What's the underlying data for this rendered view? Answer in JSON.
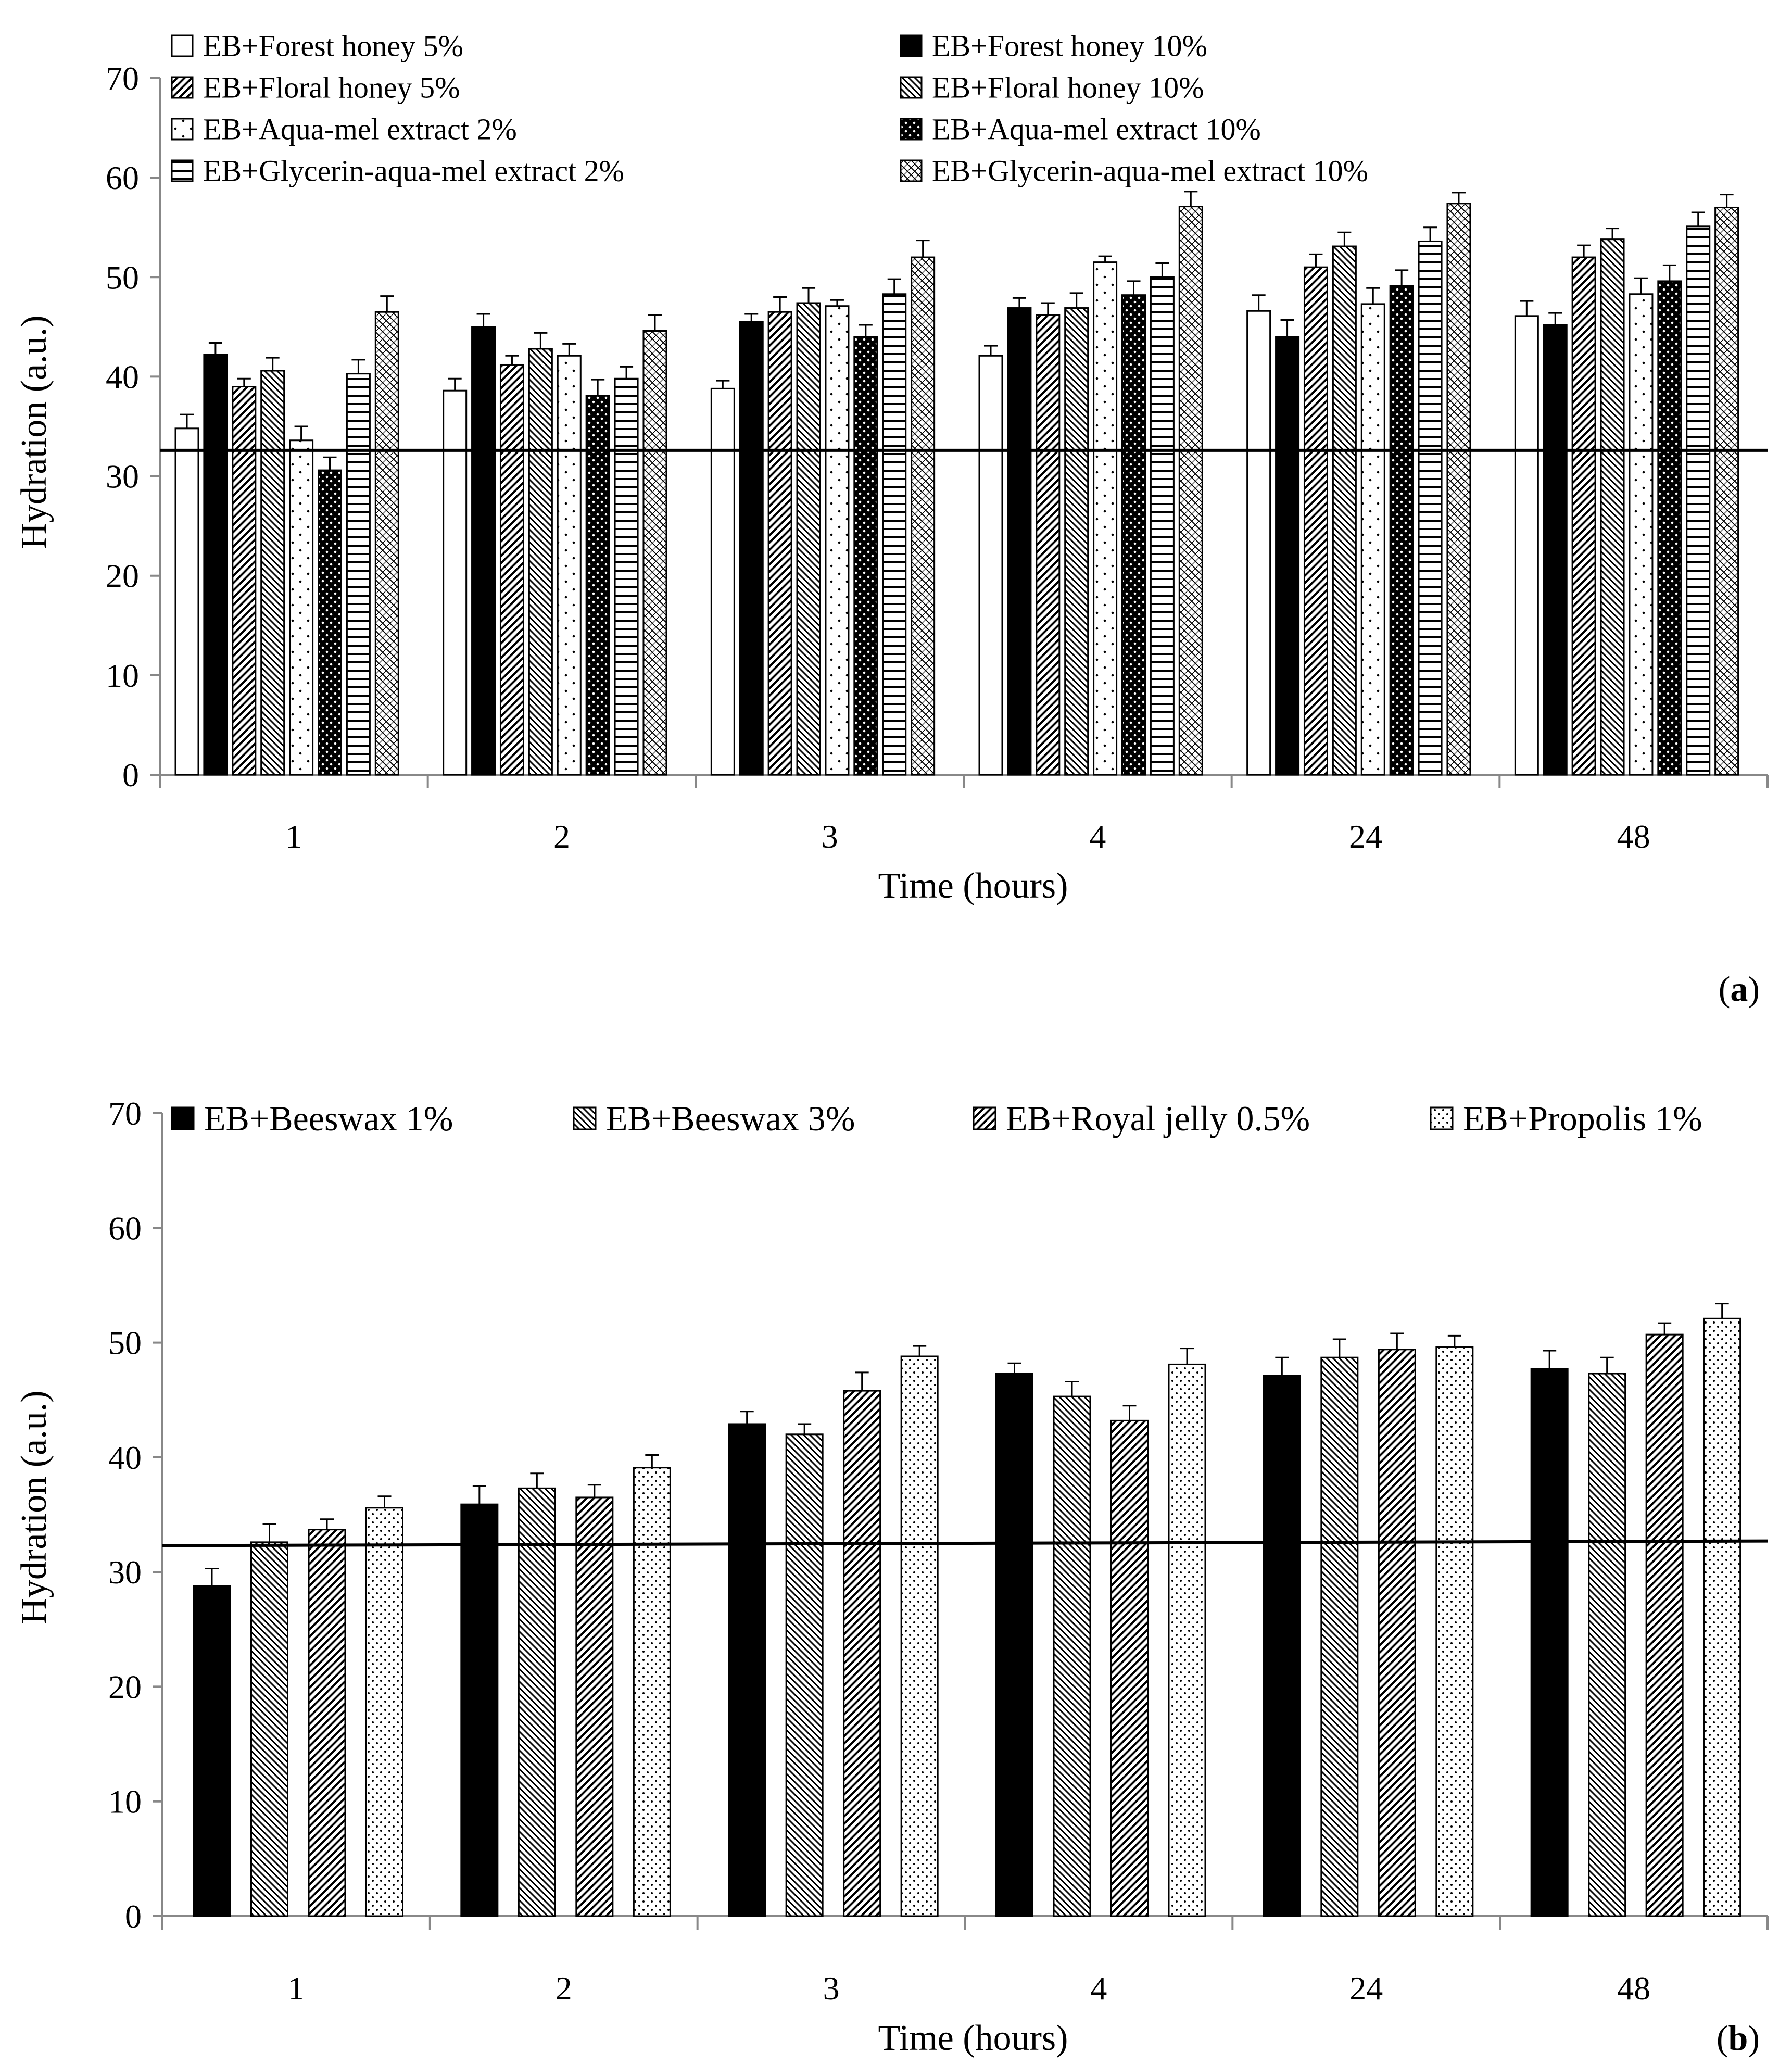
{
  "panel_labels": {
    "a": "(a)",
    "b": "(b)",
    "a_letter": "a",
    "b_letter": "b"
  },
  "pattern_names": {
    "white": "white-fill",
    "black": "black-fill",
    "diag_dense": "diagonal-hatch-dense",
    "diag_fine": "diagonal-hatch-fine",
    "dots_sparse": "sparse-dots",
    "dots_white_on_black": "white-dots-on-black",
    "horizontal": "horizontal-stripes",
    "checker": "checker-diagonal",
    "dots": "dotted"
  },
  "chart_data": [
    {
      "type": "bar",
      "panel": "(a)",
      "xlabel": "Time (hours)",
      "ylabel": "Hydration (a.u.)",
      "ylim": [
        0,
        70
      ],
      "yticks": [
        0,
        10,
        20,
        30,
        40,
        50,
        60,
        70
      ],
      "categories": [
        "1",
        "2",
        "3",
        "4",
        "24",
        "48"
      ],
      "reference_line": {
        "y_start": 32.6,
        "y_end": 32.6
      },
      "legend_position": "top",
      "series": [
        {
          "name": "EB+Forest honey 5%",
          "pattern": "white",
          "values": [
            34.8,
            38.6,
            38.8,
            42.1,
            46.6,
            46.1
          ],
          "errors": [
            1.4,
            1.2,
            0.8,
            1.0,
            1.6,
            1.5
          ]
        },
        {
          "name": "EB+Forest honey 10%",
          "pattern": "black",
          "values": [
            42.2,
            45.0,
            45.5,
            46.9,
            44.0,
            45.2
          ],
          "errors": [
            1.2,
            1.3,
            0.8,
            1.0,
            1.7,
            1.2
          ]
        },
        {
          "name": "EB+Floral honey 5%",
          "pattern": "diag_dense",
          "values": [
            39.0,
            41.2,
            46.5,
            46.2,
            51.0,
            52.0
          ],
          "errors": [
            0.8,
            0.9,
            1.5,
            1.2,
            1.3,
            1.2
          ]
        },
        {
          "name": "EB+Floral honey 10%",
          "pattern": "diag_fine",
          "values": [
            40.6,
            42.8,
            47.4,
            46.9,
            53.1,
            53.8
          ],
          "errors": [
            1.3,
            1.6,
            1.5,
            1.5,
            1.4,
            1.1
          ]
        },
        {
          "name": "EB+Aqua-mel extract 2%",
          "pattern": "dots_sparse",
          "values": [
            33.6,
            42.1,
            47.1,
            51.5,
            47.3,
            48.3
          ],
          "errors": [
            1.4,
            1.2,
            0.6,
            0.6,
            1.6,
            1.6
          ]
        },
        {
          "name": "EB+Aqua-mel extract 10%",
          "pattern": "dots_white_on_black",
          "values": [
            30.6,
            38.1,
            44.0,
            48.2,
            49.1,
            49.6
          ],
          "errors": [
            1.3,
            1.6,
            1.2,
            1.4,
            1.6,
            1.6
          ]
        },
        {
          "name": "EB+Glycerin-aqua-mel extract 2%",
          "pattern": "horizontal",
          "values": [
            40.3,
            39.8,
            48.3,
            50.0,
            53.6,
            55.1
          ],
          "errors": [
            1.4,
            1.2,
            1.5,
            1.4,
            1.4,
            1.4
          ]
        },
        {
          "name": "EB+Glycerin-aqua-mel extract 10%",
          "pattern": "checker",
          "values": [
            46.5,
            44.6,
            52.0,
            57.1,
            57.4,
            57.0
          ],
          "errors": [
            1.6,
            1.6,
            1.7,
            1.5,
            1.1,
            1.3
          ]
        }
      ]
    },
    {
      "type": "bar",
      "panel": "(b)",
      "xlabel": "Time (hours)",
      "ylabel": "Hydration (a.u.)",
      "ylim": [
        0,
        70
      ],
      "yticks": [
        0,
        10,
        20,
        30,
        40,
        50,
        60,
        70
      ],
      "categories": [
        "1",
        "2",
        "3",
        "4",
        "24",
        "48"
      ],
      "reference_line": {
        "y_start": 32.3,
        "y_end": 32.7
      },
      "legend_position": "top",
      "series": [
        {
          "name": "EB+Beeswax 1%",
          "pattern": "black",
          "values": [
            28.8,
            35.9,
            42.9,
            47.3,
            47.1,
            47.7
          ],
          "errors": [
            1.5,
            1.6,
            1.1,
            0.9,
            1.6,
            1.6
          ]
        },
        {
          "name": "EB+Beeswax 3%",
          "pattern": "diag_fine",
          "values": [
            32.6,
            37.3,
            42.0,
            45.3,
            48.7,
            47.3
          ],
          "errors": [
            1.6,
            1.3,
            0.9,
            1.3,
            1.6,
            1.4
          ]
        },
        {
          "name": "EB+Royal jelly 0.5%",
          "pattern": "diag_dense",
          "values": [
            33.7,
            36.5,
            45.8,
            43.2,
            49.4,
            50.7
          ],
          "errors": [
            0.9,
            1.1,
            1.6,
            1.3,
            1.4,
            1.0
          ]
        },
        {
          "name": "EB+Propolis 1%",
          "pattern": "dots",
          "values": [
            35.6,
            39.1,
            48.8,
            48.1,
            49.6,
            52.1
          ],
          "errors": [
            1.0,
            1.1,
            0.9,
            1.4,
            1.0,
            1.3
          ]
        }
      ]
    }
  ]
}
